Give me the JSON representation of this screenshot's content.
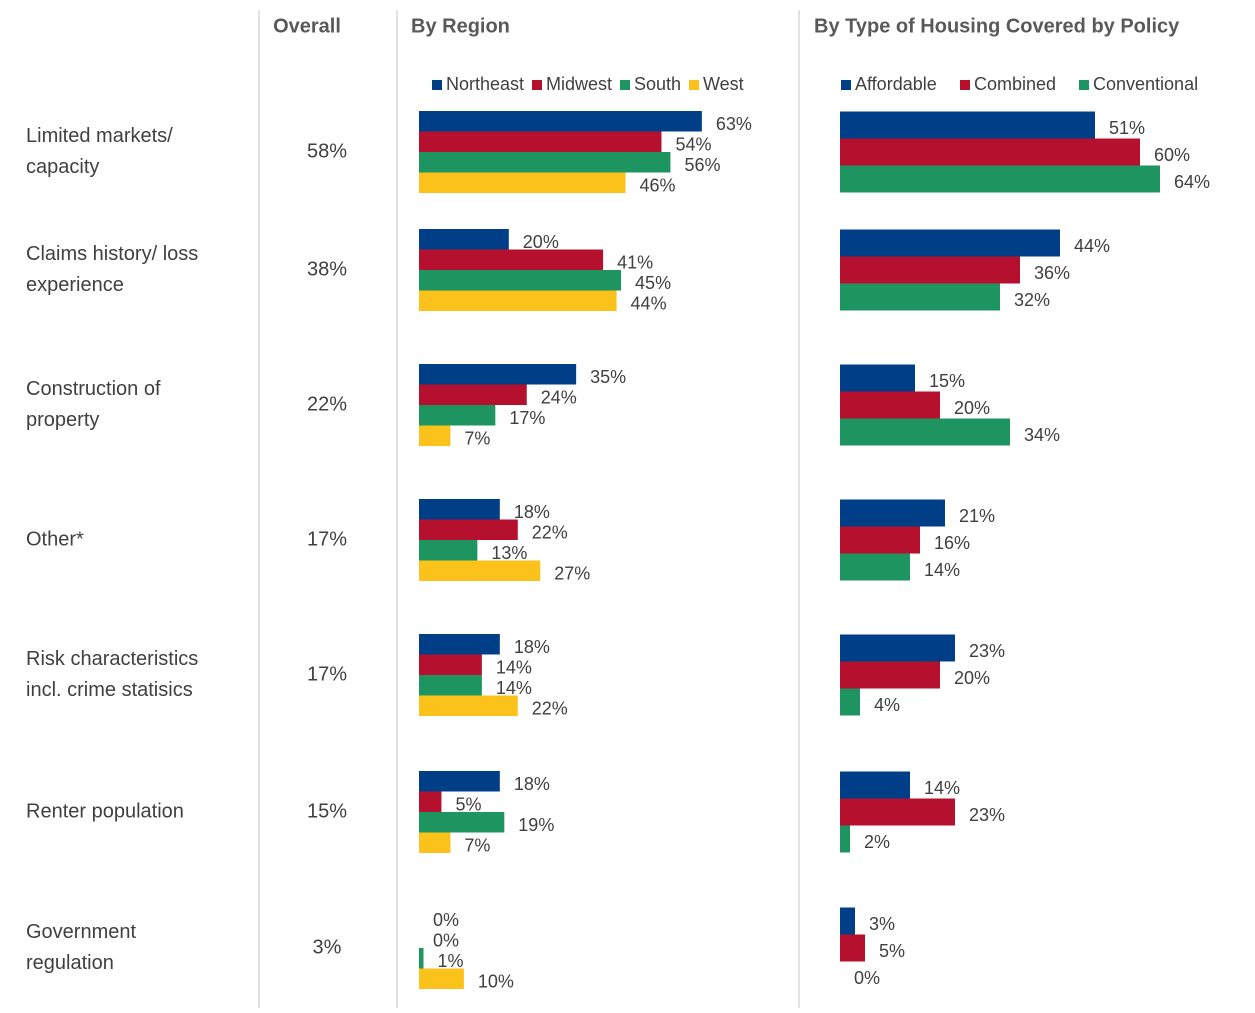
{
  "chart_data": [
    {
      "type": "table",
      "title": "Overall",
      "categories": [
        [
          "Limited markets/",
          "capacity"
        ],
        [
          "Claims history/ loss",
          "experience"
        ],
        [
          "Construction of",
          "property"
        ],
        [
          "Other*"
        ],
        [
          "Risk characteristics",
          "incl. crime statisics"
        ],
        [
          "Renter population"
        ],
        [
          "Government",
          "regulation"
        ]
      ],
      "values": [
        58,
        38,
        22,
        17,
        17,
        15,
        3
      ],
      "value_labels": [
        "58%",
        "38%",
        "22%",
        "17%",
        "17%",
        "15%",
        "3%"
      ]
    },
    {
      "type": "bar",
      "orientation": "horizontal",
      "title": "By Region",
      "series": [
        {
          "name": "Northeast",
          "color": "#003f87",
          "values": [
            63,
            20,
            35,
            18,
            18,
            18,
            0
          ],
          "value_labels": [
            "63%",
            "20%",
            "35%",
            "18%",
            "18%",
            "18%",
            "0%"
          ]
        },
        {
          "name": "Midwest",
          "color": "#b5112f",
          "values": [
            54,
            41,
            24,
            22,
            14,
            5,
            0
          ],
          "value_labels": [
            "54%",
            "41%",
            "24%",
            "22%",
            "14%",
            "5%",
            "0%"
          ]
        },
        {
          "name": "South",
          "color": "#1e9460",
          "values": [
            56,
            45,
            17,
            13,
            14,
            19,
            1
          ],
          "value_labels": [
            "56%",
            "45%",
            "17%",
            "13%",
            "14%",
            "19%",
            "1%"
          ]
        },
        {
          "name": "West",
          "color": "#fbc21c",
          "values": [
            46,
            44,
            7,
            27,
            22,
            7,
            10
          ],
          "value_labels": [
            "46%",
            "44%",
            "7%",
            "27%",
            "22%",
            "7%",
            "10%"
          ]
        }
      ]
    },
    {
      "type": "bar",
      "orientation": "horizontal",
      "title": "By Type of Housing Covered by Policy",
      "series": [
        {
          "name": "Affordable",
          "color": "#003f87",
          "values": [
            51,
            44,
            15,
            21,
            23,
            14,
            3
          ],
          "value_labels": [
            "51%",
            "44%",
            "15%",
            "21%",
            "23%",
            "14%",
            "3%"
          ]
        },
        {
          "name": "Combined",
          "color": "#b5112f",
          "values": [
            60,
            36,
            20,
            16,
            20,
            23,
            5
          ],
          "value_labels": [
            "60%",
            "36%",
            "20%",
            "16%",
            "20%",
            "23%",
            "5%"
          ]
        },
        {
          "name": "Conventional",
          "color": "#1e9460",
          "values": [
            64,
            32,
            34,
            14,
            4,
            2,
            0
          ],
          "value_labels": [
            "64%",
            "32%",
            "34%",
            "14%",
            "4%",
            "2%",
            "0%"
          ]
        }
      ]
    }
  ]
}
